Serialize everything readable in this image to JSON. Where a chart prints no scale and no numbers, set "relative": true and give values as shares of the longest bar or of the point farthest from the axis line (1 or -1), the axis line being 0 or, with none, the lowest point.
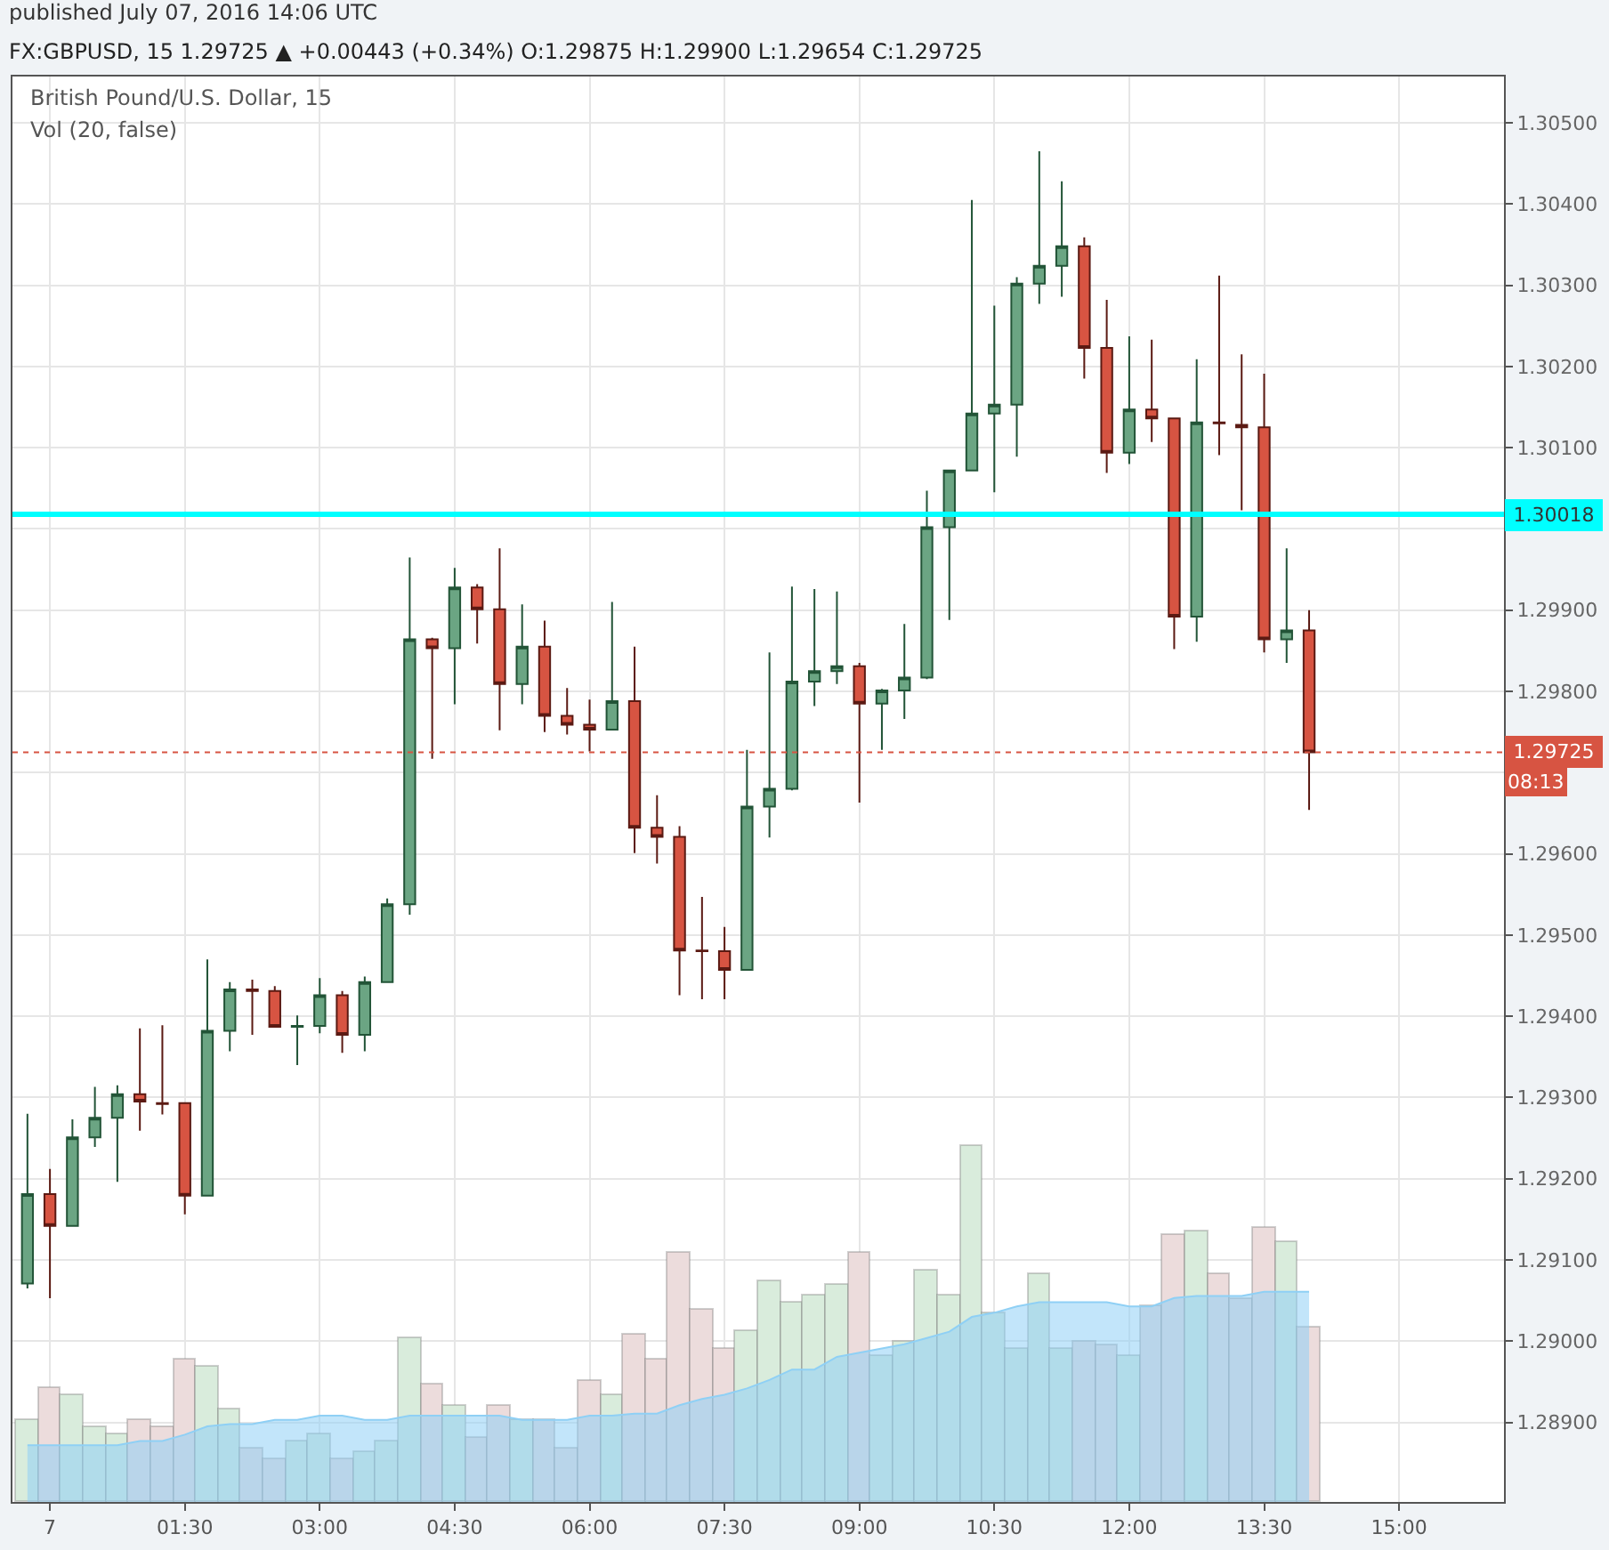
{
  "chart_data": [
    {
      "type": "candlestick",
      "title": "British Pound/U.S. Dollar, 15",
      "annotations": [
        "published July 07, 2016 14:06 UTC",
        "FX:GBPUSD, 15 1.29725 ▲ +0.00443 (+0.34%) O:1.29875 H:1.29900 L:1.29654 C:1.29725",
        "08:13"
      ],
      "x": [
        "2016-07-06T23:45",
        "2016-07-07T00:00",
        "2016-07-07T00:15",
        "2016-07-07T00:30",
        "2016-07-07T00:45",
        "2016-07-07T01:00",
        "2016-07-07T01:15",
        "2016-07-07T01:30",
        "2016-07-07T01:45",
        "2016-07-07T02:00",
        "2016-07-07T02:15",
        "2016-07-07T02:30",
        "2016-07-07T02:45",
        "2016-07-07T03:00",
        "2016-07-07T03:15",
        "2016-07-07T03:30",
        "2016-07-07T03:45",
        "2016-07-07T04:00",
        "2016-07-07T04:15",
        "2016-07-07T04:30",
        "2016-07-07T04:45",
        "2016-07-07T05:00",
        "2016-07-07T05:15",
        "2016-07-07T05:30",
        "2016-07-07T05:45",
        "2016-07-07T06:00",
        "2016-07-07T06:15",
        "2016-07-07T06:30",
        "2016-07-07T06:45",
        "2016-07-07T07:00",
        "2016-07-07T07:15",
        "2016-07-07T07:30",
        "2016-07-07T07:45",
        "2016-07-07T08:00",
        "2016-07-07T08:15",
        "2016-07-07T08:30",
        "2016-07-07T08:45",
        "2016-07-07T09:00",
        "2016-07-07T09:15",
        "2016-07-07T09:30",
        "2016-07-07T09:45",
        "2016-07-07T10:00",
        "2016-07-07T10:15",
        "2016-07-07T10:30",
        "2016-07-07T10:45",
        "2016-07-07T11:00",
        "2016-07-07T11:15",
        "2016-07-07T11:30",
        "2016-07-07T11:45",
        "2016-07-07T12:00",
        "2016-07-07T12:15",
        "2016-07-07T12:30",
        "2016-07-07T12:45",
        "2016-07-07T13:00",
        "2016-07-07T13:15",
        "2016-07-07T13:30",
        "2016-07-07T13:45",
        "2016-07-07T14:00"
      ],
      "ohlc": [
        [
          1.29071,
          1.2928,
          1.29065,
          1.29181
        ],
        [
          1.29181,
          1.29212,
          1.29053,
          1.29142
        ],
        [
          1.29142,
          1.29273,
          1.29142,
          1.29251
        ],
        [
          1.29251,
          1.29313,
          1.29239,
          1.29275
        ],
        [
          1.29275,
          1.29315,
          1.29196,
          1.29304
        ],
        [
          1.29304,
          1.29385,
          1.29259,
          1.29295
        ],
        [
          1.29293,
          1.29389,
          1.29279,
          1.29292
        ],
        [
          1.29293,
          1.29293,
          1.29156,
          1.29179
        ],
        [
          1.29179,
          1.2947,
          1.29179,
          1.29382
        ],
        [
          1.29382,
          1.29442,
          1.29357,
          1.29433
        ],
        [
          1.29433,
          1.29445,
          1.29377,
          1.29431
        ],
        [
          1.29431,
          1.29437,
          1.29387,
          1.29387
        ],
        [
          1.29387,
          1.29401,
          1.2934,
          1.29388
        ],
        [
          1.29388,
          1.29447,
          1.29379,
          1.29426
        ],
        [
          1.29426,
          1.29431,
          1.29355,
          1.29377
        ],
        [
          1.29377,
          1.29449,
          1.29357,
          1.29442
        ],
        [
          1.29442,
          1.29545,
          1.29442,
          1.29538
        ],
        [
          1.29538,
          1.29965,
          1.29525,
          1.29864
        ],
        [
          1.29864,
          1.29866,
          1.29717,
          1.29853
        ],
        [
          1.29853,
          1.29952,
          1.29784,
          1.29928
        ],
        [
          1.29928,
          1.29932,
          1.29859,
          1.29901
        ],
        [
          1.29901,
          1.29976,
          1.29752,
          1.29809
        ],
        [
          1.29809,
          1.29907,
          1.29784,
          1.29855
        ],
        [
          1.29855,
          1.29887,
          1.2975,
          1.2977
        ],
        [
          1.2977,
          1.29804,
          1.29747,
          1.29759
        ],
        [
          1.29759,
          1.2979,
          1.29726,
          1.29753
        ],
        [
          1.29753,
          1.2991,
          1.29753,
          1.29788
        ],
        [
          1.29788,
          1.29855,
          1.29601,
          1.29632
        ],
        [
          1.29632,
          1.29672,
          1.29588,
          1.29621
        ],
        [
          1.29621,
          1.29634,
          1.29426,
          1.29481
        ],
        [
          1.29481,
          1.29547,
          1.29421,
          1.2948
        ],
        [
          1.2948,
          1.2951,
          1.29421,
          1.29457
        ],
        [
          1.29457,
          1.29728,
          1.29457,
          1.29658
        ],
        [
          1.29658,
          1.29848,
          1.2962,
          1.2968
        ],
        [
          1.2968,
          1.29929,
          1.29678,
          1.29812
        ],
        [
          1.29812,
          1.29926,
          1.29782,
          1.29825
        ],
        [
          1.29825,
          1.29923,
          1.29809,
          1.29831
        ],
        [
          1.29831,
          1.29835,
          1.29663,
          1.29785
        ],
        [
          1.29785,
          1.29803,
          1.29728,
          1.29801
        ],
        [
          1.29801,
          1.29883,
          1.29766,
          1.29817
        ],
        [
          1.29817,
          1.30047,
          1.29815,
          1.30002
        ],
        [
          1.30002,
          1.30072,
          1.29888,
          1.30072
        ],
        [
          1.30072,
          1.30405,
          1.30072,
          1.30142
        ],
        [
          1.30142,
          1.30275,
          1.30045,
          1.30153
        ],
        [
          1.30153,
          1.3031,
          1.30089,
          1.30302
        ],
        [
          1.30302,
          1.30465,
          1.30277,
          1.30324
        ],
        [
          1.30324,
          1.30428,
          1.30286,
          1.30348
        ],
        [
          1.30348,
          1.30359,
          1.30185,
          1.30223
        ],
        [
          1.30223,
          1.30282,
          1.30069,
          1.30094
        ],
        [
          1.30094,
          1.30237,
          1.3008,
          1.30147
        ],
        [
          1.30147,
          1.30233,
          1.30107,
          1.30136
        ],
        [
          1.30136,
          1.30136,
          1.29852,
          1.29892
        ],
        [
          1.29892,
          1.30209,
          1.29861,
          1.30131
        ],
        [
          1.30131,
          1.30312,
          1.30091,
          1.3013
        ],
        [
          1.30128,
          1.30215,
          1.30023,
          1.30125
        ],
        [
          1.30125,
          1.30191,
          1.29848,
          1.29864
        ],
        [
          1.29864,
          1.29976,
          1.29835,
          1.29875
        ],
        [
          1.29875,
          1.299,
          1.29654,
          1.29725
        ]
      ],
      "xlim": [
        "2016-07-06T23:35",
        "2016-07-07T16:10"
      ],
      "xticks": [
        {
          "value": "2016-07-07T00:00",
          "label": "7"
        },
        {
          "value": "2016-07-07T01:30",
          "label": "01:30"
        },
        {
          "value": "2016-07-07T03:00",
          "label": "03:00"
        },
        {
          "value": "2016-07-07T04:30",
          "label": "04:30"
        },
        {
          "value": "2016-07-07T06:00",
          "label": "06:00"
        },
        {
          "value": "2016-07-07T07:30",
          "label": "07:30"
        },
        {
          "value": "2016-07-07T09:00",
          "label": "09:00"
        },
        {
          "value": "2016-07-07T10:30",
          "label": "10:30"
        },
        {
          "value": "2016-07-07T12:00",
          "label": "12:00"
        },
        {
          "value": "2016-07-07T13:30",
          "label": "13:30"
        },
        {
          "value": "2016-07-07T15:00",
          "label": "15:00"
        }
      ],
      "ylim": [
        1.28802,
        1.30557
      ],
      "yticks": [
        {
          "value": 1.289,
          "label": "1.28900"
        },
        {
          "value": 1.29,
          "label": "1.29000"
        },
        {
          "value": 1.291,
          "label": "1.29100"
        },
        {
          "value": 1.292,
          "label": "1.29200"
        },
        {
          "value": 1.293,
          "label": "1.29300"
        },
        {
          "value": 1.294,
          "label": "1.29400"
        },
        {
          "value": 1.295,
          "label": "1.29500"
        },
        {
          "value": 1.296,
          "label": "1.29600"
        },
        {
          "value": 1.297,
          "label": null
        },
        {
          "value": 1.298,
          "label": "1.29800"
        },
        {
          "value": 1.299,
          "label": "1.29900"
        },
        {
          "value": 1.3,
          "label": null
        },
        {
          "value": 1.301,
          "label": "1.30100"
        },
        {
          "value": 1.302,
          "label": "1.30200"
        },
        {
          "value": 1.303,
          "label": "1.30300"
        },
        {
          "value": 1.304,
          "label": "1.30400"
        },
        {
          "value": 1.305,
          "label": "1.30500"
        }
      ],
      "ref_lines": [
        {
          "axis": "y",
          "value": 1.30018,
          "label": "1.30018",
          "color": "#00ffff",
          "line_style": "solid"
        },
        {
          "axis": "y",
          "value": 1.29725,
          "label": "1.29725",
          "color": "#d75442",
          "line_style": "dotted"
        }
      ],
      "grid": true
    },
    {
      "type": "bar",
      "title": "Vol (20, false)",
      "relative": true,
      "tick_labels": false,
      "categories": [
        null,
        null,
        null,
        null,
        null,
        null,
        null,
        null,
        null,
        null,
        null,
        null,
        null,
        null,
        null,
        null,
        null,
        null,
        null,
        null,
        null,
        null,
        null,
        null,
        null,
        null,
        null,
        null,
        null,
        null,
        null,
        null,
        null,
        null,
        null,
        null,
        null,
        null,
        null,
        null,
        null,
        null,
        null,
        null,
        null,
        null,
        null,
        null,
        null,
        null,
        null,
        null,
        null,
        null,
        null,
        null,
        null,
        null
      ],
      "series": [
        {
          "type": "bar",
          "colors": [
            "#d9ecdc",
            "#ecdcdc",
            "#d9ecdc",
            "#d9ecdc",
            "#d9ecdc",
            "#ecdcdc",
            "#ecdcdc",
            "#ecdcdc",
            "#d9ecdc",
            "#d9ecdc",
            "#ecdcdc",
            "#ecdcdc",
            "#d9ecdc",
            "#d9ecdc",
            "#ecdcdc",
            "#d9ecdc",
            "#d9ecdc",
            "#d9ecdc",
            "#ecdcdc",
            "#d9ecdc",
            "#ecdcdc",
            "#ecdcdc",
            "#d9ecdc",
            "#ecdcdc",
            "#ecdcdc",
            "#ecdcdc",
            "#d9ecdc",
            "#ecdcdc",
            "#ecdcdc",
            "#ecdcdc",
            "#ecdcdc",
            "#ecdcdc",
            "#d9ecdc",
            "#d9ecdc",
            "#d9ecdc",
            "#d9ecdc",
            "#d9ecdc",
            "#ecdcdc",
            "#d9ecdc",
            "#d9ecdc",
            "#d9ecdc",
            "#d9ecdc",
            "#d9ecdc",
            "#d9ecdc",
            "#d9ecdc",
            "#d9ecdc",
            "#d9ecdc",
            "#ecdcdc",
            "#ecdcdc",
            "#d9ecdc",
            "#ecdcdc",
            "#ecdcdc",
            "#d9ecdc",
            "#ecdcdc",
            "#ecdcdc",
            "#ecdcdc",
            "#d9ecdc",
            "#ecdcdc"
          ],
          "values": [
            0.23,
            0.32,
            0.3,
            0.21,
            0.19,
            0.23,
            0.21,
            0.4,
            0.38,
            0.26,
            0.15,
            0.12,
            0.17,
            0.19,
            0.12,
            0.14,
            0.17,
            0.46,
            0.33,
            0.27,
            0.18,
            0.27,
            0.23,
            0.23,
            0.15,
            0.34,
            0.3,
            0.47,
            0.4,
            0.7,
            0.54,
            0.43,
            0.48,
            0.62,
            0.56,
            0.58,
            0.61,
            0.7,
            0.41,
            0.45,
            0.65,
            0.58,
            1.0,
            0.53,
            0.43,
            0.64,
            0.43,
            0.45,
            0.44,
            0.41,
            0.55,
            0.75,
            0.76,
            0.64,
            0.57,
            0.77,
            0.73,
            0.49
          ]
        }
      ]
    },
    {
      "type": "area",
      "relative": true,
      "tick_labels": false,
      "categories": [
        null,
        null,
        null,
        null,
        null,
        null,
        null,
        null,
        null,
        null,
        null,
        null,
        null,
        null,
        null,
        null,
        null,
        null,
        null,
        null,
        null,
        null,
        null,
        null,
        null,
        null,
        null,
        null,
        null,
        null,
        null,
        null,
        null,
        null,
        null,
        null,
        null,
        null,
        null,
        null,
        null,
        null,
        null,
        null,
        null,
        null,
        null,
        null,
        null,
        null,
        null,
        null,
        null,
        null,
        null,
        null,
        null,
        null
      ],
      "series": [
        {
          "type": "area",
          "color": "#8fd0f5",
          "values": [
            0.27,
            0.27,
            0.27,
            0.27,
            0.27,
            0.29,
            0.29,
            0.32,
            0.36,
            0.37,
            0.37,
            0.39,
            0.39,
            0.41,
            0.41,
            0.39,
            0.39,
            0.41,
            0.41,
            0.41,
            0.41,
            0.41,
            0.39,
            0.39,
            0.39,
            0.41,
            0.41,
            0.42,
            0.42,
            0.46,
            0.49,
            0.51,
            0.54,
            0.58,
            0.63,
            0.63,
            0.69,
            0.71,
            0.73,
            0.75,
            0.78,
            0.81,
            0.88,
            0.9,
            0.93,
            0.95,
            0.95,
            0.95,
            0.95,
            0.93,
            0.93,
            0.97,
            0.98,
            0.98,
            0.98,
            1.0,
            1.0,
            1.0
          ]
        }
      ]
    }
  ]
}
